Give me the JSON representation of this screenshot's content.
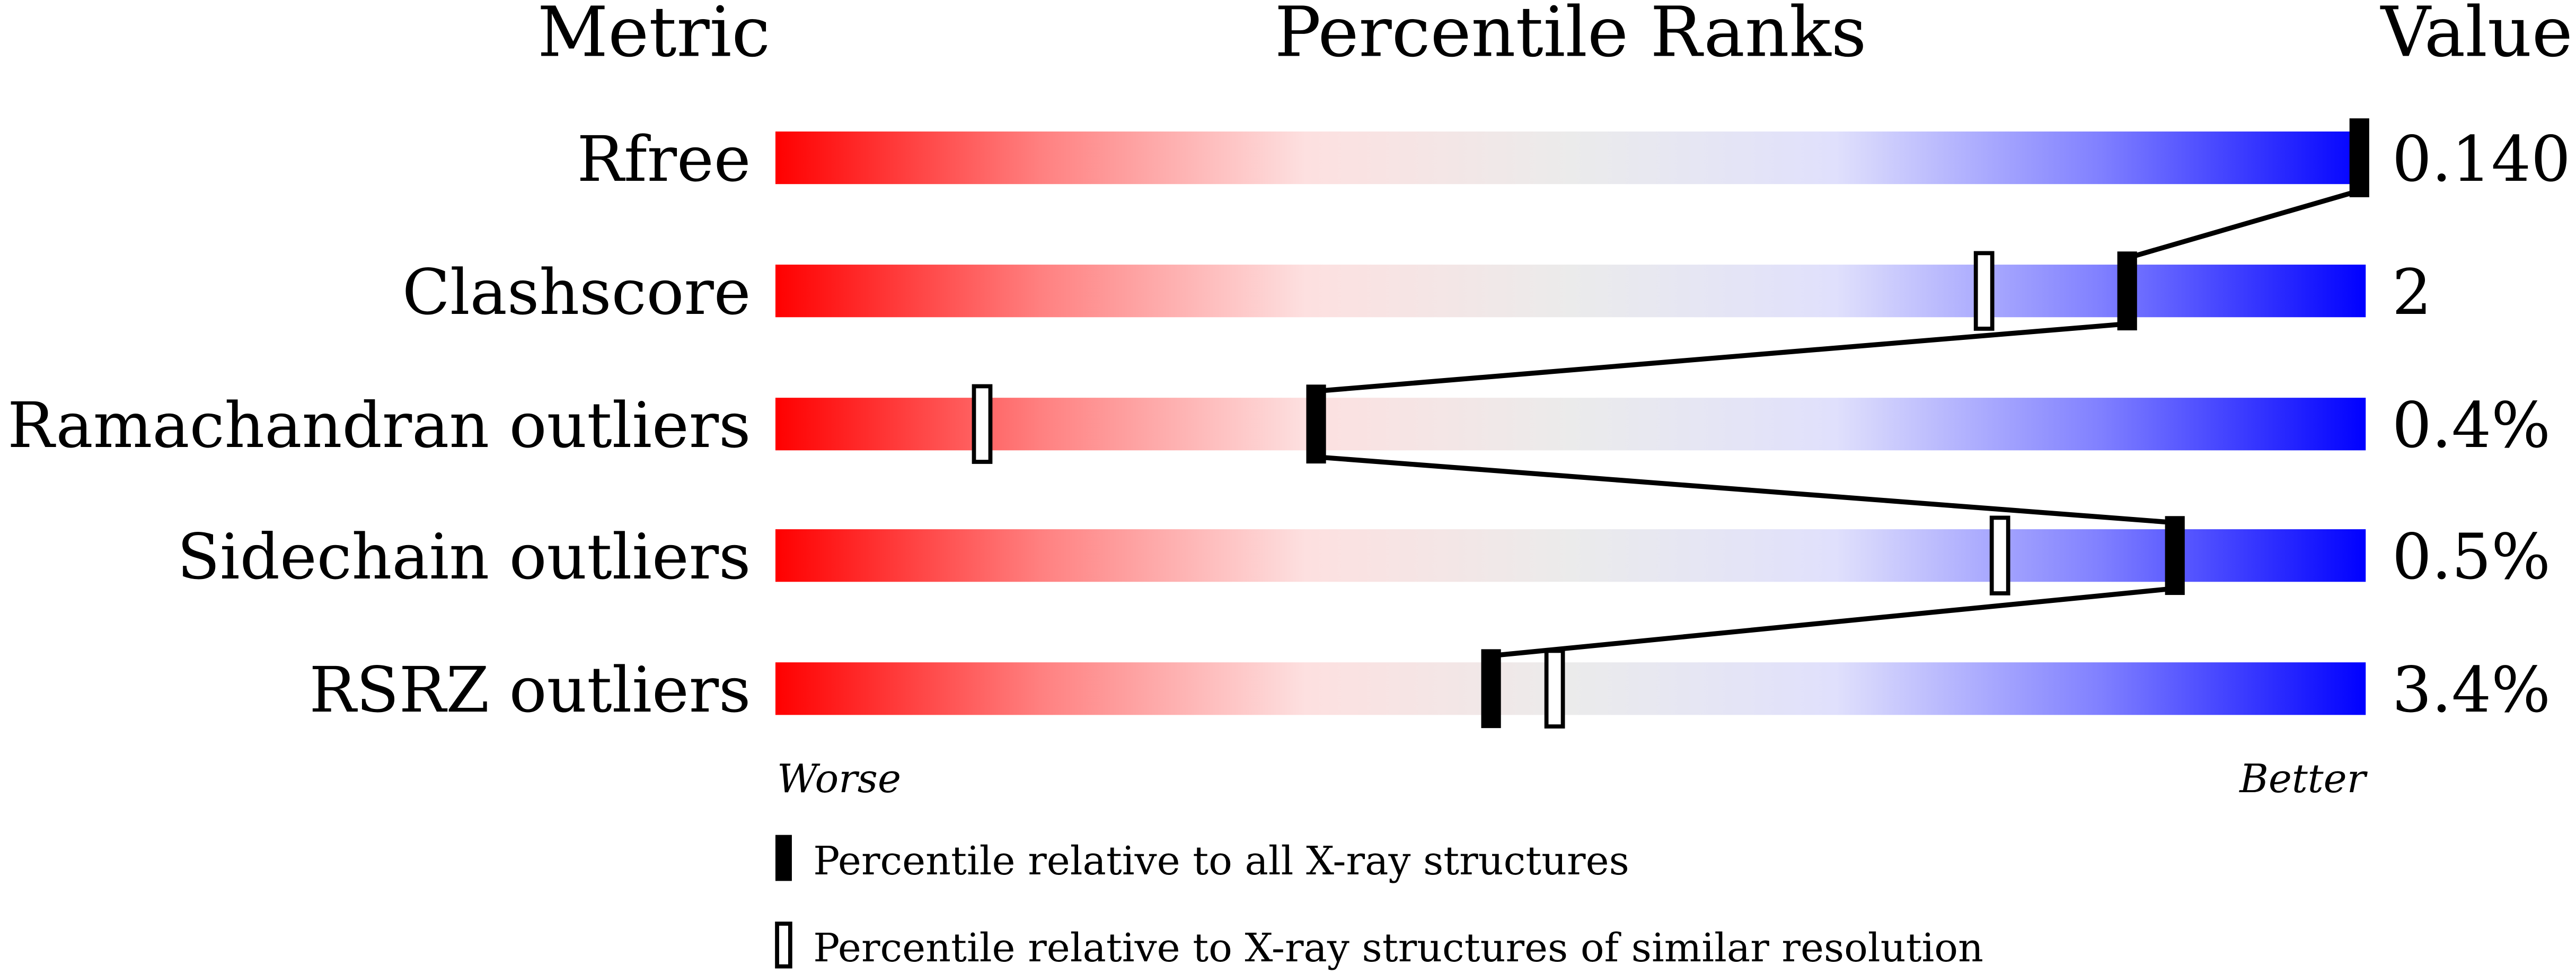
{
  "chart_data": {
    "type": "percentile-ranks",
    "headers": {
      "metric": "Metric",
      "ranks": "Percentile Ranks",
      "value": "Value"
    },
    "xlim": [
      0,
      100
    ],
    "axis_labels": {
      "left": "Worse",
      "right": "Better"
    },
    "gradient_colors": [
      "#ff0000",
      "#ff8080",
      "#fde0e0",
      "#ebebeb",
      "#e0e0fc",
      "#8080ff",
      "#0000ff"
    ],
    "rows": [
      {
        "metric": "Rfree",
        "value": "0.140",
        "percentile_all": 100,
        "percentile_similar": null
      },
      {
        "metric": "Clashscore",
        "value": "2",
        "percentile_all": 85,
        "percentile_similar": 76
      },
      {
        "metric": "Ramachandran outliers",
        "value": "0.4%",
        "percentile_all": 34,
        "percentile_similar": 13
      },
      {
        "metric": "Sidechain outliers",
        "value": "0.5%",
        "percentile_all": 88,
        "percentile_similar": 77
      },
      {
        "metric": "RSRZ outliers",
        "value": "3.4%",
        "percentile_all": 45,
        "percentile_similar": 49
      }
    ],
    "legend": [
      {
        "marker": "filled",
        "label": "Percentile relative to all X-ray structures"
      },
      {
        "marker": "open",
        "label": "Percentile relative to X-ray structures of similar resolution"
      }
    ]
  }
}
